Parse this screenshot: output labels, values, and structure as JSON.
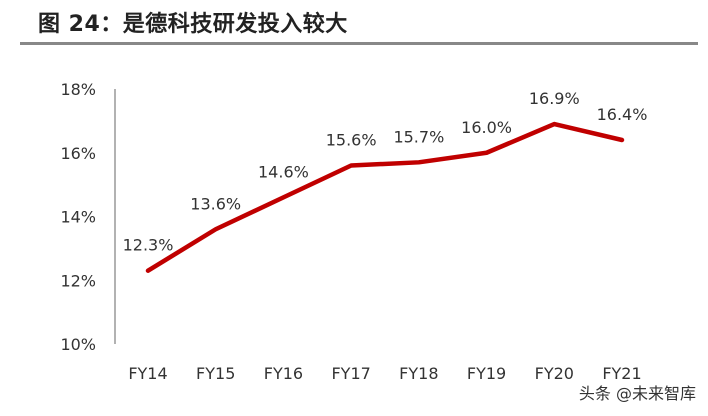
{
  "title": "图 24：是德科技研发投入较大",
  "watermark": "头条 @未来智库",
  "chart_data": {
    "type": "line",
    "title": "",
    "xlabel": "",
    "ylabel": "",
    "categories": [
      "FY14",
      "FY15",
      "FY16",
      "FY17",
      "FY18",
      "FY19",
      "FY20",
      "FY21"
    ],
    "series": [
      {
        "values": [
          12.3,
          13.6,
          14.6,
          15.6,
          15.7,
          16.0,
          16.9,
          16.4
        ],
        "labels": [
          "12.3%",
          "13.6%",
          "14.6%",
          "15.6%",
          "15.7%",
          "16.0%",
          "16.9%",
          "16.4%"
        ],
        "color": "#C00000"
      }
    ],
    "ylim": [
      10,
      18
    ],
    "yticks": [
      10,
      12,
      14,
      16,
      18
    ],
    "ytick_labels": [
      "10%",
      "12%",
      "14%",
      "16%",
      "18%"
    ],
    "grid": false,
    "legend": "none"
  }
}
